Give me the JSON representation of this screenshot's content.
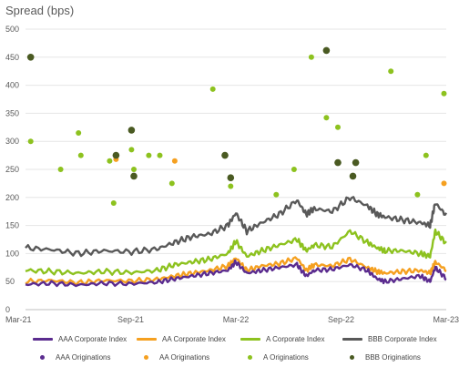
{
  "chart_data": {
    "type": "line",
    "ylabel": "Spread (bps)",
    "ylim": [
      0,
      500
    ],
    "yticks": [
      0,
      50,
      100,
      150,
      200,
      250,
      300,
      350,
      400,
      450,
      500
    ],
    "xticks": [
      "Mar-21",
      "Sep-21",
      "Mar-22",
      "Sep-22",
      "Mar-23"
    ],
    "xrange": [
      "2021-03-01",
      "2023-03-01"
    ],
    "grid": "horizontal",
    "legend_position": "bottom",
    "series": [
      {
        "name": "AAA Corporate Index",
        "color": "#5b2c8f",
        "kind": "line",
        "points": [
          [
            "2021-03-01",
            45
          ],
          [
            "2021-04-15",
            47
          ],
          [
            "2021-06-01",
            44
          ],
          [
            "2021-07-15",
            47
          ],
          [
            "2021-09-01",
            46
          ],
          [
            "2021-10-15",
            49
          ],
          [
            "2021-11-15",
            55
          ],
          [
            "2021-12-15",
            60
          ],
          [
            "2022-01-15",
            65
          ],
          [
            "2022-02-15",
            70
          ],
          [
            "2022-03-01",
            85
          ],
          [
            "2022-03-20",
            65
          ],
          [
            "2022-04-15",
            70
          ],
          [
            "2022-05-15",
            75
          ],
          [
            "2022-06-15",
            80
          ],
          [
            "2022-07-01",
            60
          ],
          [
            "2022-07-15",
            70
          ],
          [
            "2022-08-15",
            72
          ],
          [
            "2022-09-15",
            80
          ],
          [
            "2022-10-15",
            70
          ],
          [
            "2022-11-01",
            55
          ],
          [
            "2022-11-15",
            50
          ],
          [
            "2022-12-15",
            55
          ],
          [
            "2023-01-15",
            60
          ],
          [
            "2023-02-01",
            50
          ],
          [
            "2023-02-10",
            75
          ],
          [
            "2023-03-01",
            55
          ]
        ]
      },
      {
        "name": "AA Corporate Index",
        "color": "#f5a020",
        "kind": "line",
        "points": [
          [
            "2021-03-01",
            50
          ],
          [
            "2021-04-15",
            52
          ],
          [
            "2021-06-01",
            48
          ],
          [
            "2021-07-15",
            52
          ],
          [
            "2021-09-01",
            51
          ],
          [
            "2021-10-15",
            54
          ],
          [
            "2021-11-15",
            60
          ],
          [
            "2021-12-15",
            65
          ],
          [
            "2022-01-15",
            70
          ],
          [
            "2022-02-15",
            78
          ],
          [
            "2022-03-01",
            92
          ],
          [
            "2022-03-20",
            70
          ],
          [
            "2022-04-15",
            78
          ],
          [
            "2022-05-15",
            82
          ],
          [
            "2022-06-15",
            92
          ],
          [
            "2022-07-01",
            70
          ],
          [
            "2022-07-15",
            80
          ],
          [
            "2022-08-15",
            78
          ],
          [
            "2022-09-15",
            90
          ],
          [
            "2022-10-15",
            75
          ],
          [
            "2022-11-01",
            68
          ],
          [
            "2022-11-15",
            65
          ],
          [
            "2022-12-15",
            68
          ],
          [
            "2023-01-15",
            70
          ],
          [
            "2023-02-01",
            65
          ],
          [
            "2023-02-10",
            85
          ],
          [
            "2023-03-01",
            70
          ]
        ]
      },
      {
        "name": "A Corporate Index",
        "color": "#8dc21f",
        "kind": "line",
        "points": [
          [
            "2021-03-01",
            70
          ],
          [
            "2021-04-15",
            68
          ],
          [
            "2021-06-01",
            65
          ],
          [
            "2021-07-15",
            68
          ],
          [
            "2021-09-01",
            66
          ],
          [
            "2021-10-15",
            70
          ],
          [
            "2021-11-15",
            80
          ],
          [
            "2021-12-15",
            85
          ],
          [
            "2022-01-15",
            90
          ],
          [
            "2022-02-15",
            100
          ],
          [
            "2022-03-01",
            122
          ],
          [
            "2022-03-20",
            95
          ],
          [
            "2022-04-15",
            105
          ],
          [
            "2022-05-15",
            115
          ],
          [
            "2022-06-15",
            125
          ],
          [
            "2022-07-01",
            105
          ],
          [
            "2022-07-15",
            115
          ],
          [
            "2022-08-15",
            112
          ],
          [
            "2022-09-15",
            140
          ],
          [
            "2022-10-15",
            120
          ],
          [
            "2022-11-01",
            110
          ],
          [
            "2022-11-15",
            105
          ],
          [
            "2022-12-15",
            105
          ],
          [
            "2023-01-15",
            100
          ],
          [
            "2023-02-01",
            95
          ],
          [
            "2023-02-10",
            140
          ],
          [
            "2023-03-01",
            118
          ]
        ]
      },
      {
        "name": "BBB Corporate Index",
        "color": "#595959",
        "kind": "line",
        "points": [
          [
            "2021-03-01",
            110
          ],
          [
            "2021-04-15",
            107
          ],
          [
            "2021-06-01",
            100
          ],
          [
            "2021-07-15",
            105
          ],
          [
            "2021-09-01",
            103
          ],
          [
            "2021-10-15",
            108
          ],
          [
            "2021-11-15",
            120
          ],
          [
            "2021-12-15",
            130
          ],
          [
            "2022-01-15",
            135
          ],
          [
            "2022-02-15",
            150
          ],
          [
            "2022-03-01",
            172
          ],
          [
            "2022-03-20",
            140
          ],
          [
            "2022-04-15",
            155
          ],
          [
            "2022-05-15",
            170
          ],
          [
            "2022-06-15",
            195
          ],
          [
            "2022-07-01",
            170
          ],
          [
            "2022-07-15",
            180
          ],
          [
            "2022-08-15",
            175
          ],
          [
            "2022-09-15",
            200
          ],
          [
            "2022-10-15",
            185
          ],
          [
            "2022-11-01",
            170
          ],
          [
            "2022-11-15",
            165
          ],
          [
            "2022-12-15",
            160
          ],
          [
            "2023-01-15",
            155
          ],
          [
            "2023-02-01",
            150
          ],
          [
            "2023-02-10",
            190
          ],
          [
            "2023-03-01",
            168
          ]
        ]
      },
      {
        "name": "AAA Originations",
        "color": "#5b2c8f",
        "kind": "dots",
        "points": []
      },
      {
        "name": "AA Originations",
        "color": "#f5a020",
        "kind": "dots",
        "points": [
          [
            "2021-08-05",
            268
          ],
          [
            "2021-11-15",
            265
          ],
          [
            "2023-02-25",
            225
          ]
        ]
      },
      {
        "name": "A Originations",
        "color": "#8dc21f",
        "kind": "dots",
        "points": [
          [
            "2021-03-10",
            300
          ],
          [
            "2021-05-01",
            250
          ],
          [
            "2021-06-01",
            315
          ],
          [
            "2021-06-05",
            275
          ],
          [
            "2021-07-25",
            265
          ],
          [
            "2021-08-01",
            190
          ],
          [
            "2021-09-01",
            285
          ],
          [
            "2021-09-05",
            250
          ],
          [
            "2021-10-01",
            275
          ],
          [
            "2021-10-20",
            275
          ],
          [
            "2021-11-10",
            225
          ],
          [
            "2022-01-20",
            393
          ],
          [
            "2022-02-20",
            220
          ],
          [
            "2022-05-10",
            205
          ],
          [
            "2022-06-10",
            250
          ],
          [
            "2022-07-10",
            450
          ],
          [
            "2022-08-05",
            342
          ],
          [
            "2022-08-25",
            325
          ],
          [
            "2022-11-25",
            425
          ],
          [
            "2023-01-10",
            205
          ],
          [
            "2023-01-25",
            275
          ],
          [
            "2023-02-25",
            385
          ]
        ]
      },
      {
        "name": "BBB Originations",
        "color": "#4a5a22",
        "kind": "dots",
        "points": [
          [
            "2021-03-10",
            450
          ],
          [
            "2021-08-05",
            275
          ],
          [
            "2021-09-01",
            320
          ],
          [
            "2021-09-05",
            238
          ],
          [
            "2022-02-10",
            275
          ],
          [
            "2022-02-20",
            235
          ],
          [
            "2022-08-05",
            462
          ],
          [
            "2022-08-25",
            262
          ],
          [
            "2022-09-20",
            238
          ],
          [
            "2022-09-25",
            262
          ]
        ]
      }
    ]
  }
}
